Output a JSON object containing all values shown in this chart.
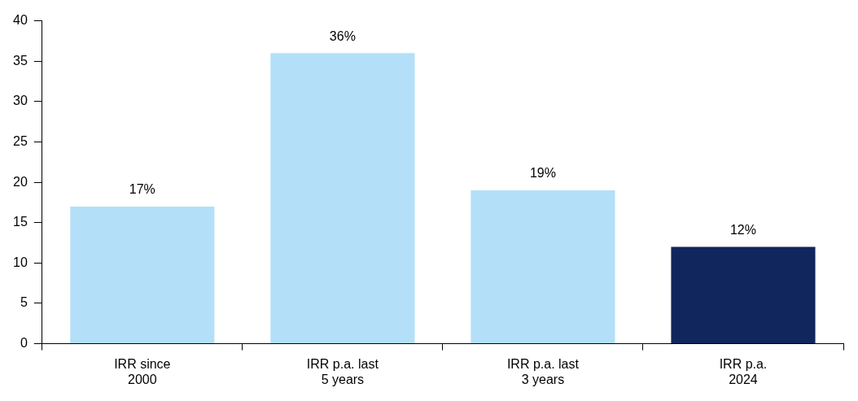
{
  "chart_data": {
    "type": "bar",
    "categories": [
      "IRR since\n2000",
      "IRR p.a. last\n5 years",
      "IRR p.a. last\n3 years",
      "IRR p.a.\n2024"
    ],
    "values": [
      17,
      36,
      19,
      12
    ],
    "colors": [
      "#b3e0f8",
      "#b3e0f8",
      "#b3e0f8",
      "#10265c"
    ],
    "value_labels": [
      "17%",
      "36%",
      "19%",
      "12%"
    ],
    "ylim": [
      0,
      40
    ],
    "yticks": [
      0,
      5,
      10,
      15,
      20,
      25,
      30,
      35,
      40
    ],
    "grid": false
  }
}
